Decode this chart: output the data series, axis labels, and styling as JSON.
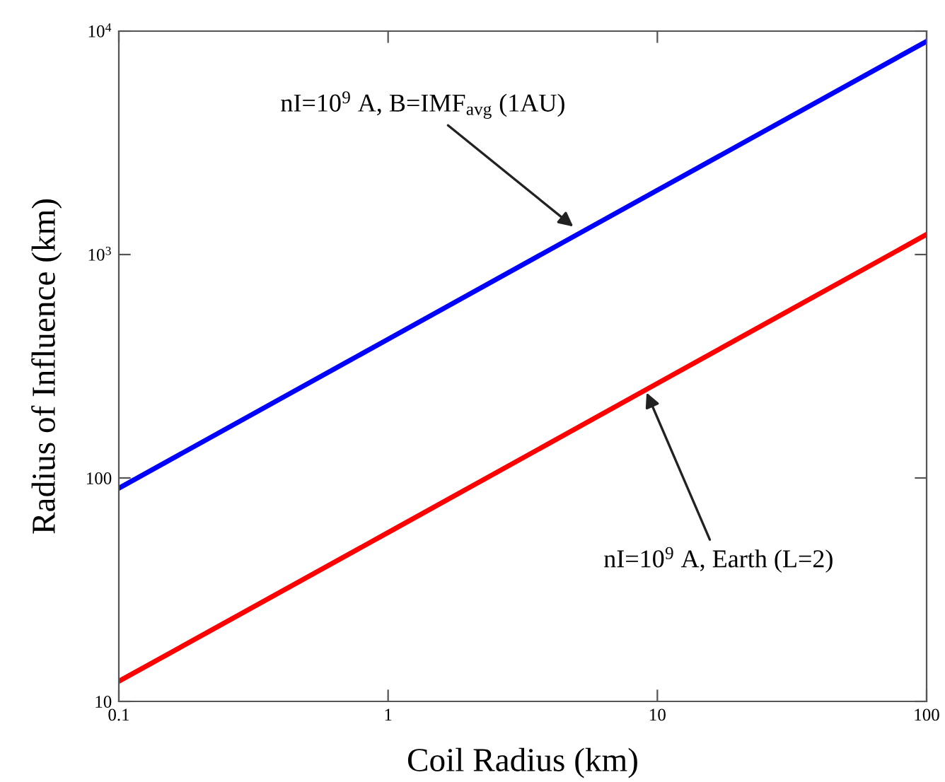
{
  "chart_data": {
    "type": "line",
    "xlabel": "Coil Radius (km)",
    "ylabel": "Radius of Influence (km)",
    "log": "xy",
    "x": [
      0.1,
      1,
      10,
      100
    ],
    "series": [
      {
        "color": "#0000ff",
        "values": [
          90,
          418,
          1940,
          9000
        ]
      },
      {
        "color": "#ff0000",
        "values": [
          12.3,
          57,
          265,
          1230
        ]
      }
    ],
    "xlim": [
      0.1,
      100
    ],
    "xticks": [
      0.1,
      1,
      10,
      100
    ],
    "ylim": [
      10,
      10000
    ],
    "yticks": [
      10,
      100,
      {
        "value": 1000,
        "label": "10$^{3}$"
      },
      {
        "value": 10000,
        "label": "10$^{4}$"
      }
    ],
    "grid": false,
    "legend": false,
    "marker": "none",
    "line_style": "solid",
    "annotations": [
      {
        "text": "nI=10$^{9}$ A, B=IMF$_{avg}$ (1AU)",
        "x": 5,
        "y": 1300
      },
      {
        "text": "nI=10$^{9}$ A, Earth (L=2)",
        "x": 9,
        "y": 250
      }
    ]
  }
}
